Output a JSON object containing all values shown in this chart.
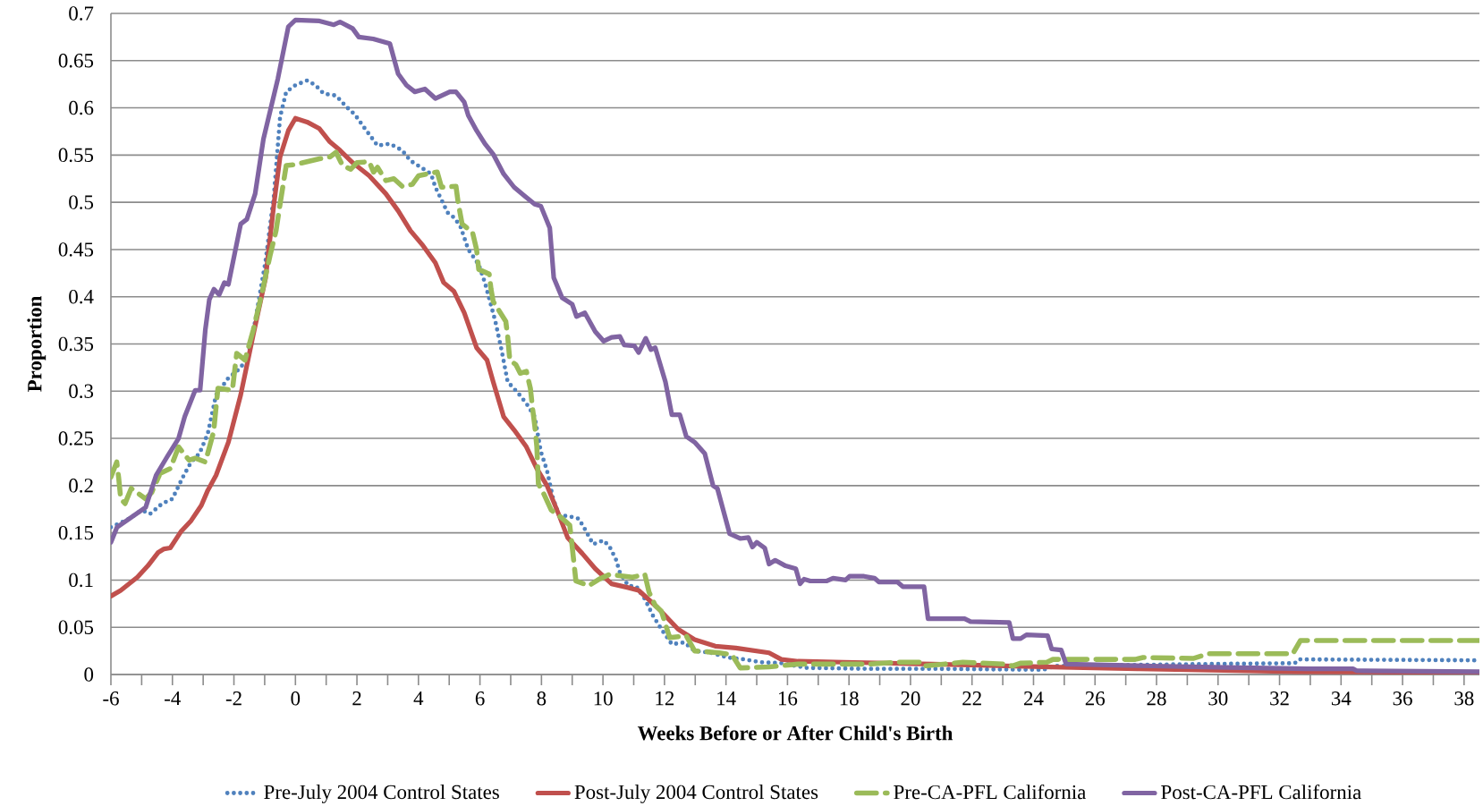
{
  "chart_data": {
    "type": "line",
    "xlabel": "Weeks Before or After Child's Birth",
    "ylabel": "Proportion",
    "xlim": [
      -6,
      38.5
    ],
    "ylim": [
      0,
      0.7
    ],
    "xticks": [
      -6,
      -4,
      -2,
      0,
      2,
      4,
      6,
      8,
      10,
      12,
      14,
      16,
      18,
      20,
      22,
      24,
      26,
      28,
      30,
      32,
      34,
      36,
      38
    ],
    "yticks": [
      0,
      0.05,
      0.1,
      0.15,
      0.2,
      0.25,
      0.3,
      0.35,
      0.4,
      0.45,
      0.5,
      0.55,
      0.6,
      0.65,
      0.7
    ],
    "grid": "y",
    "legend": "bottom",
    "marker": "none",
    "series": [
      {
        "name": "Pre-July 2004 Control States",
        "color": "#4f81bd",
        "line_style": "dotted",
        "x": [
          -6,
          -5.4,
          -5.0,
          -4.73,
          -4.33,
          -4.0,
          -3.66,
          -3.39,
          -3.12,
          -2.85,
          -2.58,
          -2.18,
          -1.91,
          -1.57,
          -1.31,
          -0.97,
          -0.7,
          -0.5,
          -0.3,
          0,
          0.38,
          0.65,
          0.92,
          1.32,
          1.66,
          1.93,
          2.26,
          2.67,
          3.07,
          3.47,
          3.74,
          4.08,
          4.41,
          4.55,
          4.95,
          5.15,
          5.36,
          5.62,
          5.96,
          6.16,
          6.5,
          6.7,
          6.9,
          7.24,
          7.51,
          7.78,
          7.98,
          8.18,
          8.38,
          8.58,
          8.85,
          9.21,
          9.41,
          9.68,
          10.02,
          10.22,
          10.42,
          10.55,
          10.82,
          11.09,
          11.36,
          11.63,
          11.9,
          12.24,
          12.64,
          12.98,
          13.51,
          14.05,
          14.59,
          15.13,
          15.8,
          16.61,
          18.63,
          20.72,
          24.32,
          24.7,
          29.31,
          32.5,
          32.62,
          38.5
        ],
        "values": [
          0.156,
          0.165,
          0.174,
          0.17,
          0.181,
          0.186,
          0.209,
          0.225,
          0.234,
          0.255,
          0.296,
          0.314,
          0.321,
          0.333,
          0.374,
          0.438,
          0.507,
          0.59,
          0.617,
          0.624,
          0.629,
          0.624,
          0.615,
          0.613,
          0.601,
          0.593,
          0.578,
          0.56,
          0.562,
          0.555,
          0.544,
          0.537,
          0.53,
          0.516,
          0.489,
          0.484,
          0.475,
          0.45,
          0.434,
          0.415,
          0.374,
          0.344,
          0.31,
          0.298,
          0.287,
          0.273,
          0.236,
          0.216,
          0.186,
          0.168,
          0.168,
          0.165,
          0.154,
          0.138,
          0.142,
          0.135,
          0.122,
          0.108,
          0.094,
          0.093,
          0.08,
          0.062,
          0.048,
          0.032,
          0.034,
          0.025,
          0.023,
          0.018,
          0.016,
          0.013,
          0.012,
          0.007,
          0.006,
          0.006,
          0.005,
          0.009,
          0.011,
          0.012,
          0.016,
          0.015
        ]
      },
      {
        "name": "Post-July 2004 Control States",
        "color": "#c0504d",
        "line_style": "solid",
        "x": [
          -6,
          -5.68,
          -5.14,
          -4.8,
          -4.47,
          -4.27,
          -4.07,
          -3.73,
          -3.39,
          -3.06,
          -2.85,
          -2.58,
          -2.18,
          -1.78,
          -1.37,
          -0.97,
          -0.7,
          -0.5,
          -0.23,
          0,
          0.38,
          0.78,
          1.12,
          1.45,
          1.86,
          2.4,
          2.94,
          3.34,
          3.74,
          4.15,
          4.55,
          4.82,
          5.15,
          5.49,
          5.89,
          6.23,
          6.43,
          6.77,
          7.11,
          7.51,
          7.85,
          8.18,
          8.58,
          8.85,
          9.33,
          9.75,
          10.28,
          10.82,
          11.16,
          11.77,
          12.44,
          12.98,
          13.65,
          14.32,
          15.4,
          15.8,
          16.34,
          17.82,
          20.72,
          24.57,
          27.44,
          32.56,
          38.5
        ],
        "values": [
          0.083,
          0.089,
          0.103,
          0.115,
          0.129,
          0.133,
          0.134,
          0.151,
          0.163,
          0.179,
          0.195,
          0.211,
          0.246,
          0.296,
          0.36,
          0.42,
          0.498,
          0.548,
          0.576,
          0.589,
          0.585,
          0.578,
          0.564,
          0.555,
          0.542,
          0.528,
          0.509,
          0.491,
          0.47,
          0.454,
          0.436,
          0.415,
          0.406,
          0.383,
          0.346,
          0.333,
          0.31,
          0.273,
          0.259,
          0.241,
          0.218,
          0.2,
          0.168,
          0.145,
          0.128,
          0.112,
          0.096,
          0.092,
          0.089,
          0.071,
          0.048,
          0.037,
          0.03,
          0.028,
          0.023,
          0.016,
          0.014,
          0.013,
          0.011,
          0.008,
          0.006,
          0.003,
          0.002
        ]
      },
      {
        "name": "Pre-CA-PFL California",
        "color": "#9bbb59",
        "line_style": "dashed",
        "x": [
          -6,
          -5.81,
          -5.75,
          -5.68,
          -5.54,
          -5.34,
          -4.87,
          -4.67,
          -4.4,
          -4.07,
          -3.8,
          -3.46,
          -3.26,
          -2.93,
          -2.66,
          -2.52,
          -2.05,
          -1.91,
          -1.64,
          -1.37,
          -1.1,
          -0.83,
          -0.63,
          -0.5,
          -0.3,
          0,
          0.38,
          0.78,
          1.12,
          1.32,
          1.53,
          1.8,
          2.0,
          2.4,
          2.54,
          2.67,
          2.94,
          3.2,
          3.47,
          3.8,
          4.0,
          4.41,
          4.61,
          4.75,
          5.22,
          5.29,
          5.42,
          5.76,
          5.89,
          5.96,
          6.3,
          6.36,
          6.43,
          6.84,
          6.9,
          6.97,
          7.17,
          7.31,
          7.51,
          7.64,
          7.71,
          7.78,
          7.85,
          7.9,
          8.05,
          8.32,
          8.58,
          8.92,
          8.99,
          9.06,
          9.12,
          9.54,
          9.88,
          10.22,
          10.96,
          11.36,
          11.5,
          11.7,
          11.9,
          12.17,
          12.71,
          12.98,
          13.78,
          14.19,
          14.46,
          15.4,
          16.34,
          18.63,
          19.57,
          20.38,
          20.45,
          21.7,
          23.07,
          23.32,
          23.57,
          24.44,
          24.63,
          27.31,
          27.56,
          29.19,
          29.69,
          32.43,
          32.68,
          38.5
        ],
        "values": [
          0.209,
          0.225,
          0.209,
          0.186,
          0.181,
          0.197,
          0.186,
          0.193,
          0.213,
          0.218,
          0.241,
          0.227,
          0.229,
          0.225,
          0.257,
          0.303,
          0.301,
          0.34,
          0.333,
          0.365,
          0.402,
          0.443,
          0.47,
          0.498,
          0.539,
          0.54,
          0.543,
          0.546,
          0.548,
          0.553,
          0.539,
          0.535,
          0.542,
          0.543,
          0.532,
          0.537,
          0.523,
          0.525,
          0.517,
          0.519,
          0.528,
          0.531,
          0.532,
          0.516,
          0.517,
          0.5,
          0.477,
          0.468,
          0.45,
          0.429,
          0.424,
          0.408,
          0.395,
          0.374,
          0.358,
          0.333,
          0.328,
          0.319,
          0.321,
          0.303,
          0.282,
          0.264,
          0.241,
          0.202,
          0.193,
          0.174,
          0.168,
          0.158,
          0.138,
          0.117,
          0.099,
          0.094,
          0.101,
          0.106,
          0.103,
          0.106,
          0.087,
          0.073,
          0.067,
          0.039,
          0.041,
          0.025,
          0.023,
          0.021,
          0.007,
          0.008,
          0.011,
          0.011,
          0.013,
          0.013,
          0.009,
          0.013,
          0.011,
          0.009,
          0.012,
          0.013,
          0.016,
          0.016,
          0.018,
          0.017,
          0.022,
          0.022,
          0.036,
          0.036
        ]
      },
      {
        "name": "Post-CA-PFL California",
        "color": "#8064a2",
        "line_style": "solid",
        "x": [
          -6,
          -5.8,
          -4.87,
          -4.53,
          -4.2,
          -3.8,
          -3.6,
          -3.26,
          -3.1,
          -2.93,
          -2.8,
          -2.65,
          -2.48,
          -2.31,
          -2.18,
          -1.78,
          -1.58,
          -1.31,
          -1.04,
          -0.57,
          -0.23,
          0,
          0.78,
          1.25,
          1.45,
          1.86,
          2.06,
          2.53,
          3.07,
          3.34,
          3.61,
          3.88,
          4.21,
          4.55,
          5.02,
          5.22,
          5.49,
          5.62,
          5.89,
          6.16,
          6.43,
          6.77,
          7.11,
          7.44,
          7.78,
          7.98,
          8.27,
          8.4,
          8.67,
          9.0,
          9.14,
          9.41,
          9.75,
          10.02,
          10.28,
          10.55,
          10.69,
          11.02,
          11.16,
          11.39,
          11.56,
          11.7,
          12.03,
          12.24,
          12.5,
          12.71,
          12.98,
          13.31,
          13.58,
          13.72,
          14.12,
          14.46,
          14.73,
          14.86,
          15.0,
          15.26,
          15.4,
          15.6,
          15.94,
          16.27,
          16.41,
          16.54,
          16.74,
          17.28,
          17.48,
          17.89,
          18.02,
          18.49,
          18.83,
          18.97,
          19.57,
          19.75,
          20.44,
          20.57,
          21.76,
          21.95,
          23.21,
          23.33,
          23.58,
          23.77,
          24.46,
          24.59,
          24.9,
          25.06,
          27.85,
          29.49,
          32.88,
          34.39,
          34.51,
          38.5
        ],
        "values": [
          0.14,
          0.156,
          0.177,
          0.211,
          0.229,
          0.25,
          0.273,
          0.301,
          0.301,
          0.365,
          0.397,
          0.408,
          0.402,
          0.415,
          0.413,
          0.477,
          0.482,
          0.509,
          0.567,
          0.631,
          0.686,
          0.693,
          0.692,
          0.688,
          0.691,
          0.684,
          0.675,
          0.673,
          0.668,
          0.636,
          0.624,
          0.617,
          0.62,
          0.61,
          0.617,
          0.617,
          0.606,
          0.592,
          0.576,
          0.562,
          0.551,
          0.53,
          0.516,
          0.507,
          0.498,
          0.496,
          0.473,
          0.42,
          0.399,
          0.392,
          0.379,
          0.383,
          0.363,
          0.353,
          0.357,
          0.358,
          0.349,
          0.348,
          0.341,
          0.356,
          0.344,
          0.346,
          0.31,
          0.275,
          0.275,
          0.252,
          0.246,
          0.234,
          0.2,
          0.197,
          0.149,
          0.144,
          0.145,
          0.135,
          0.14,
          0.134,
          0.117,
          0.121,
          0.115,
          0.112,
          0.096,
          0.101,
          0.099,
          0.099,
          0.102,
          0.1,
          0.104,
          0.104,
          0.102,
          0.098,
          0.098,
          0.093,
          0.093,
          0.059,
          0.059,
          0.056,
          0.055,
          0.038,
          0.038,
          0.042,
          0.041,
          0.027,
          0.026,
          0.011,
          0.009,
          0.008,
          0.006,
          0.006,
          0.004,
          0.003
        ]
      }
    ]
  }
}
